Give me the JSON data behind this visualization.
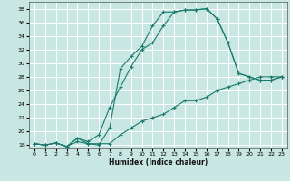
{
  "xlabel": "Humidex (Indice chaleur)",
  "xlim": [
    -0.5,
    23.5
  ],
  "ylim": [
    17.5,
    39.0
  ],
  "xticks": [
    0,
    1,
    2,
    3,
    4,
    5,
    6,
    7,
    8,
    9,
    10,
    11,
    12,
    13,
    14,
    15,
    16,
    17,
    18,
    19,
    20,
    21,
    22,
    23
  ],
  "yticks": [
    18,
    20,
    22,
    24,
    26,
    28,
    30,
    32,
    34,
    36,
    38
  ],
  "background_color": "#c8e6e2",
  "grid_color": "#ffffff",
  "line_color": "#1a7a6e",
  "curve1_x": [
    0,
    1,
    2,
    3,
    4,
    5,
    6,
    7,
    8,
    9,
    10,
    11,
    12,
    13,
    14,
    15,
    16,
    17,
    18,
    19,
    20,
    21,
    22,
    23
  ],
  "curve1_y": [
    18.2,
    18.0,
    18.3,
    17.8,
    19.0,
    18.2,
    18.0,
    20.5,
    29.2,
    31.0,
    32.5,
    35.5,
    37.5,
    37.5,
    37.8,
    37.8,
    38.0,
    36.5,
    33.0,
    28.5,
    28.0,
    27.5,
    27.5,
    28.0
  ],
  "curve2_x": [
    0,
    1,
    2,
    3,
    4,
    5,
    6,
    7,
    8,
    9,
    10,
    11,
    12,
    13,
    14,
    15,
    16,
    17,
    18,
    19,
    20,
    21,
    22,
    23
  ],
  "curve2_y": [
    18.2,
    18.0,
    18.3,
    17.8,
    19.0,
    18.5,
    19.5,
    23.5,
    26.5,
    29.5,
    32.0,
    33.0,
    35.5,
    37.5,
    37.8,
    37.8,
    38.0,
    36.5,
    33.0,
    28.5,
    28.0,
    27.5,
    27.5,
    28.0
  ],
  "curve3_x": [
    0,
    1,
    2,
    3,
    4,
    5,
    6,
    7,
    8,
    9,
    10,
    11,
    12,
    13,
    14,
    15,
    16,
    17,
    18,
    19,
    20,
    21,
    22,
    23
  ],
  "curve3_y": [
    18.2,
    18.0,
    18.3,
    17.8,
    18.5,
    18.2,
    18.2,
    18.2,
    19.5,
    20.5,
    21.5,
    22.0,
    22.5,
    23.5,
    24.5,
    24.5,
    25.0,
    26.0,
    26.5,
    27.0,
    27.5,
    28.0,
    28.0,
    28.0
  ]
}
